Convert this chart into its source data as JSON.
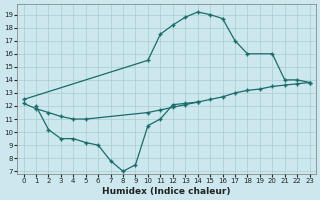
{
  "xlabel": "Humidex (Indice chaleur)",
  "xlim": [
    -0.5,
    23.5
  ],
  "ylim": [
    6.8,
    19.8
  ],
  "yticks": [
    7,
    8,
    9,
    10,
    11,
    12,
    13,
    14,
    15,
    16,
    17,
    18,
    19
  ],
  "xticks": [
    0,
    1,
    2,
    3,
    4,
    5,
    6,
    7,
    8,
    9,
    10,
    11,
    12,
    13,
    14,
    15,
    16,
    17,
    18,
    19,
    20,
    21,
    22,
    23
  ],
  "bg_color": "#cce8ee",
  "grid_color": "#aacccc",
  "line_color": "#1a6b6b",
  "line1_x": [
    0,
    10,
    11,
    12,
    13,
    14,
    15,
    16,
    17,
    18,
    20,
    21,
    22,
    23
  ],
  "line1_y": [
    12.5,
    15.5,
    17.5,
    18.2,
    18.8,
    19.2,
    19.0,
    18.7,
    17.0,
    16.0,
    16.0,
    14.0,
    14.0,
    13.8
  ],
  "line2_x": [
    0,
    1,
    2,
    3,
    4,
    5,
    10,
    11,
    12,
    13,
    14,
    15,
    16,
    17,
    18,
    19,
    20,
    21,
    22,
    23
  ],
  "line2_y": [
    12.2,
    11.8,
    11.5,
    11.2,
    11.0,
    11.0,
    11.5,
    11.7,
    11.9,
    12.1,
    12.3,
    12.5,
    12.7,
    13.0,
    13.2,
    13.3,
    13.5,
    13.6,
    13.7,
    13.8
  ],
  "line3_x": [
    1,
    2,
    3,
    4,
    5,
    6,
    7,
    8,
    9,
    10,
    11,
    12,
    13,
    14
  ],
  "line3_y": [
    12.0,
    10.2,
    9.5,
    9.5,
    9.2,
    9.0,
    7.8,
    7.0,
    7.5,
    10.5,
    11.0,
    12.1,
    12.2,
    12.3
  ]
}
